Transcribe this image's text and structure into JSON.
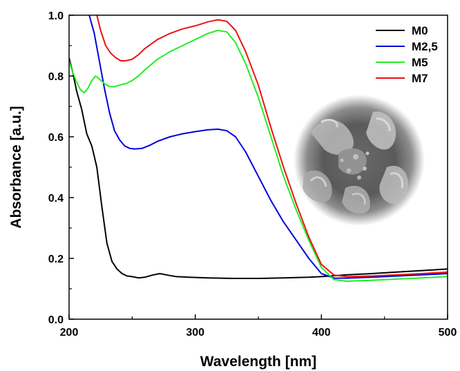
{
  "chart_data": {
    "type": "line",
    "xlabel": "Wavelength [nm]",
    "ylabel": "Absorbance [a.u.]",
    "xlim": [
      200,
      500
    ],
    "ylim": [
      0.0,
      1.0
    ],
    "xticks": [
      200,
      300,
      400,
      500
    ],
    "yticks": [
      0.0,
      0.2,
      0.4,
      0.6,
      0.8,
      1.0
    ],
    "xtick_labels": [
      "200",
      "300",
      "400",
      "500"
    ],
    "ytick_labels": [
      "0.0",
      "0.2",
      "0.4",
      "0.6",
      "0.8",
      "1.0"
    ],
    "grid": false,
    "legend_position": "top-right",
    "inset": "circular SEM micrograph (grayscale) at right center",
    "series": [
      {
        "name": "M0",
        "color": "#000000",
        "x": [
          200,
          203,
          206,
          210,
          214,
          218,
          222,
          226,
          230,
          234,
          238,
          242,
          246,
          250,
          255,
          260,
          266,
          272,
          278,
          285,
          295,
          310,
          330,
          350,
          370,
          390,
          400,
          410,
          420,
          440,
          460,
          480,
          500
        ],
        "y": [
          0.86,
          0.81,
          0.75,
          0.69,
          0.61,
          0.57,
          0.5,
          0.37,
          0.25,
          0.19,
          0.165,
          0.15,
          0.142,
          0.14,
          0.136,
          0.138,
          0.145,
          0.15,
          0.145,
          0.14,
          0.138,
          0.136,
          0.134,
          0.134,
          0.136,
          0.138,
          0.14,
          0.143,
          0.146,
          0.15,
          0.155,
          0.16,
          0.165
        ]
      },
      {
        "name": "M2,5",
        "color": "#0000dd",
        "x": [
          216,
          220,
          224,
          228,
          232,
          236,
          240,
          244,
          248,
          252,
          258,
          264,
          270,
          280,
          290,
          300,
          310,
          318,
          325,
          332,
          340,
          350,
          360,
          370,
          380,
          390,
          400,
          410,
          420,
          440,
          460,
          480,
          500
        ],
        "y": [
          1.0,
          0.94,
          0.85,
          0.76,
          0.68,
          0.62,
          0.59,
          0.57,
          0.562,
          0.56,
          0.562,
          0.572,
          0.585,
          0.6,
          0.61,
          0.617,
          0.623,
          0.625,
          0.62,
          0.6,
          0.55,
          0.47,
          0.39,
          0.32,
          0.26,
          0.2,
          0.15,
          0.135,
          0.135,
          0.138,
          0.142,
          0.146,
          0.15
        ]
      },
      {
        "name": "M5",
        "color": "#22ee22",
        "x": [
          200,
          203,
          206,
          209,
          212,
          215,
          218,
          221,
          224,
          228,
          232,
          236,
          240,
          245,
          250,
          255,
          260,
          270,
          280,
          290,
          300,
          310,
          318,
          325,
          332,
          340,
          350,
          360,
          370,
          380,
          390,
          400,
          410,
          420,
          440,
          460,
          480,
          500
        ],
        "y": [
          0.85,
          0.81,
          0.78,
          0.755,
          0.745,
          0.76,
          0.785,
          0.8,
          0.79,
          0.775,
          0.765,
          0.765,
          0.77,
          0.775,
          0.785,
          0.8,
          0.82,
          0.855,
          0.88,
          0.9,
          0.92,
          0.94,
          0.95,
          0.945,
          0.91,
          0.84,
          0.73,
          0.6,
          0.47,
          0.36,
          0.26,
          0.17,
          0.13,
          0.125,
          0.128,
          0.132,
          0.136,
          0.14
        ]
      },
      {
        "name": "M7",
        "color": "#ee1111",
        "x": [
          222,
          225,
          229,
          233,
          237,
          241,
          245,
          250,
          255,
          260,
          270,
          280,
          290,
          300,
          310,
          318,
          325,
          332,
          340,
          350,
          360,
          370,
          380,
          390,
          400,
          410,
          420,
          440,
          460,
          480,
          500
        ],
        "y": [
          1.0,
          0.95,
          0.9,
          0.875,
          0.86,
          0.85,
          0.85,
          0.855,
          0.87,
          0.89,
          0.92,
          0.94,
          0.955,
          0.965,
          0.978,
          0.985,
          0.98,
          0.95,
          0.88,
          0.77,
          0.63,
          0.5,
          0.38,
          0.27,
          0.18,
          0.145,
          0.14,
          0.142,
          0.146,
          0.15,
          0.155
        ]
      }
    ]
  }
}
